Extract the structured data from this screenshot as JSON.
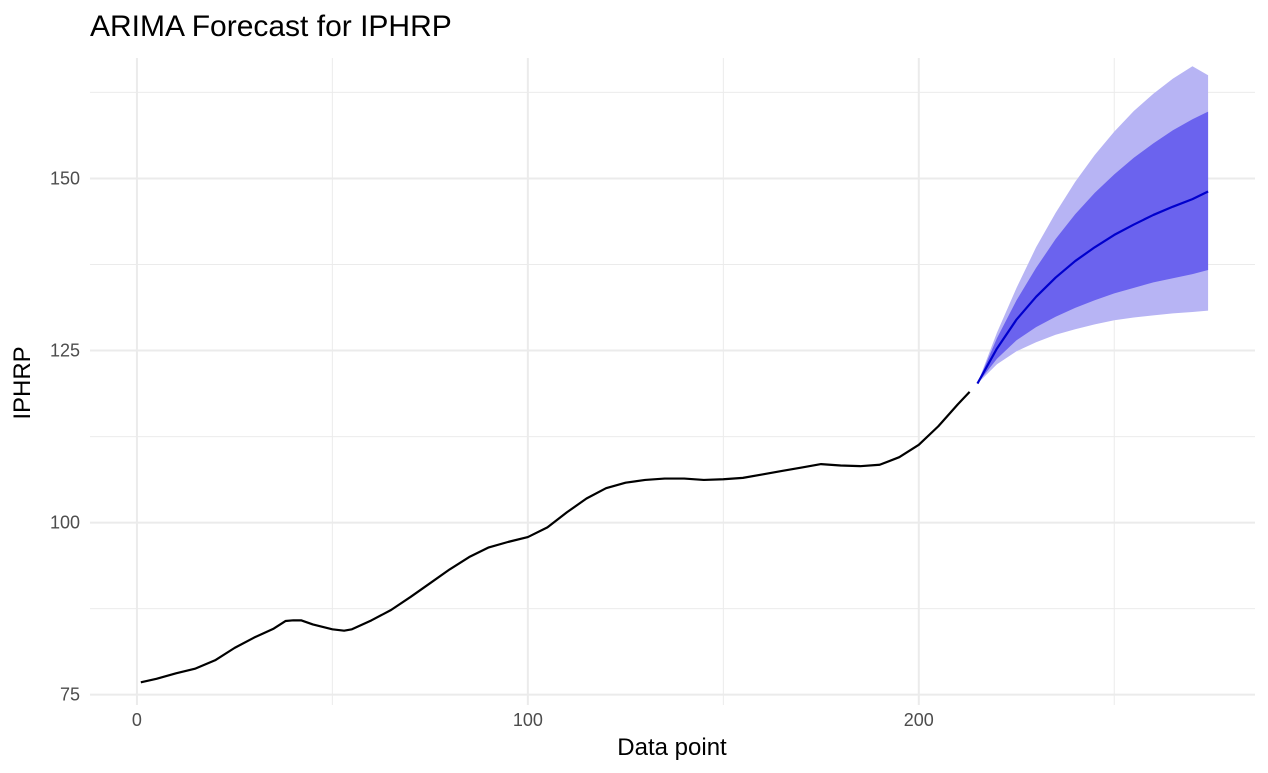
{
  "chart_data": {
    "type": "line",
    "title": "ARIMA Forecast for IPHRP",
    "xlabel": "Data point",
    "ylabel": "IPHRP",
    "xlim": [
      -12,
      286
    ],
    "ylim": [
      73.5,
      167.5
    ],
    "x_ticks": [
      0,
      100,
      200
    ],
    "y_ticks": [
      75,
      100,
      125,
      150
    ],
    "grid": true,
    "colors": {
      "observed": "#000000",
      "forecast": "#0000cd",
      "band95": "#b7b4f4",
      "band80": "#6b63ee",
      "grid": "#ebebeb"
    },
    "series": [
      {
        "role": "observed",
        "x": [
          1,
          5,
          10,
          15,
          20,
          25,
          30,
          35,
          38,
          40,
          42,
          45,
          50,
          53,
          55,
          60,
          65,
          70,
          75,
          80,
          85,
          90,
          95,
          100,
          105,
          110,
          115,
          120,
          125,
          130,
          135,
          140,
          145,
          150,
          155,
          160,
          165,
          170,
          175,
          180,
          185,
          190,
          195,
          200,
          205,
          210,
          213
        ],
        "y": [
          76.8,
          77.3,
          78.1,
          78.8,
          80.0,
          81.8,
          83.3,
          84.6,
          85.7,
          85.8,
          85.8,
          85.2,
          84.5,
          84.3,
          84.5,
          85.8,
          87.3,
          89.2,
          91.2,
          93.2,
          95.0,
          96.4,
          97.2,
          97.9,
          99.3,
          101.5,
          103.5,
          105.0,
          105.8,
          106.2,
          106.4,
          106.4,
          106.2,
          106.3,
          106.5,
          107.0,
          107.5,
          108.0,
          108.5,
          108.3,
          108.2,
          108.4,
          109.5,
          111.3,
          114.0,
          117.2,
          119.0
        ]
      },
      {
        "role": "forecast",
        "x": [
          215,
          220,
          225,
          230,
          235,
          240,
          245,
          250,
          255,
          260,
          265,
          270,
          274
        ],
        "y": [
          120.2,
          125.3,
          129.5,
          132.8,
          135.6,
          138.0,
          140.0,
          141.8,
          143.3,
          144.7,
          145.9,
          147.0,
          148.1
        ],
        "lo80": [
          120.2,
          123.8,
          126.5,
          128.4,
          129.9,
          131.2,
          132.3,
          133.3,
          134.1,
          134.9,
          135.5,
          136.1,
          136.7
        ],
        "hi80": [
          120.2,
          126.8,
          132.3,
          137.0,
          141.2,
          144.8,
          147.9,
          150.6,
          153.0,
          155.1,
          157.0,
          158.6,
          159.7
        ],
        "lo95": [
          120.2,
          123.0,
          124.9,
          126.2,
          127.3,
          128.1,
          128.8,
          129.4,
          129.8,
          130.1,
          130.4,
          130.6,
          130.8
        ],
        "hi95": [
          120.2,
          127.6,
          134.1,
          140.0,
          145.0,
          149.5,
          153.4,
          156.8,
          159.8,
          162.3,
          164.5,
          166.3,
          165.0
        ]
      }
    ]
  }
}
